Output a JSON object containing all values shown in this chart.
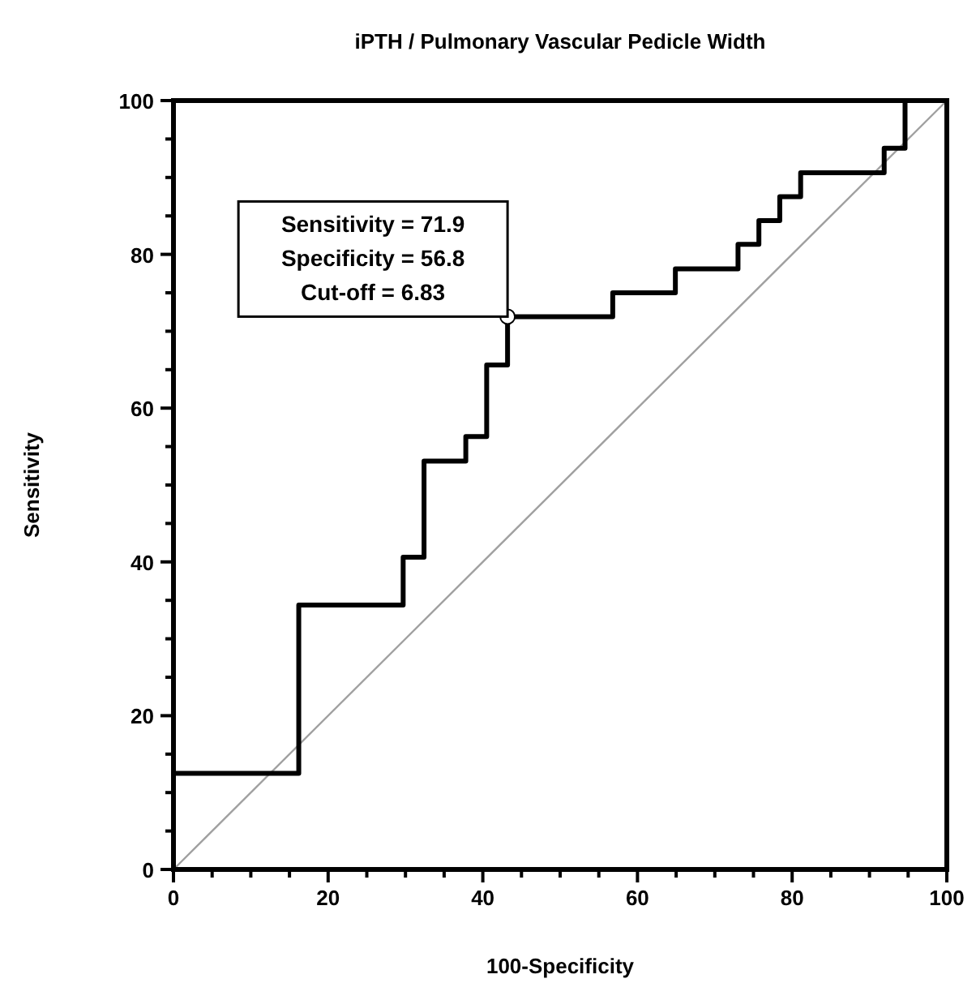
{
  "chart_data": {
    "type": "line",
    "title": "iPTH / Pulmonary Vascular Pedicle Width",
    "xlabel": "100-Specificity",
    "ylabel": "Sensitivity",
    "xlim": [
      0,
      100
    ],
    "ylim": [
      0,
      100
    ],
    "xticks": [
      0,
      {
        "value": 5,
        "label": null
      },
      {
        "value": 10,
        "label": null
      },
      {
        "value": 15,
        "label": null
      },
      20,
      {
        "value": 25,
        "label": null
      },
      {
        "value": 30,
        "label": null
      },
      {
        "value": 35,
        "label": null
      },
      40,
      {
        "value": 45,
        "label": null
      },
      {
        "value": 50,
        "label": null
      },
      {
        "value": 55,
        "label": null
      },
      60,
      {
        "value": 65,
        "label": null
      },
      {
        "value": 70,
        "label": null
      },
      {
        "value": 75,
        "label": null
      },
      80,
      {
        "value": 85,
        "label": null
      },
      {
        "value": 90,
        "label": null
      },
      {
        "value": 95,
        "label": null
      },
      100
    ],
    "yticks": [
      0,
      {
        "value": 5,
        "label": null
      },
      {
        "value": 10,
        "label": null
      },
      {
        "value": 15,
        "label": null
      },
      20,
      {
        "value": 25,
        "label": null
      },
      {
        "value": 30,
        "label": null
      },
      {
        "value": 35,
        "label": null
      },
      40,
      {
        "value": 45,
        "label": null
      },
      {
        "value": 50,
        "label": null
      },
      {
        "value": 55,
        "label": null
      },
      60,
      {
        "value": 65,
        "label": null
      },
      {
        "value": 70,
        "label": null
      },
      {
        "value": 75,
        "label": null
      },
      80,
      {
        "value": 85,
        "label": null
      },
      {
        "value": 90,
        "label": null
      },
      {
        "value": 95,
        "label": null
      },
      100
    ],
    "grid": false,
    "series": [
      {
        "color": "#000000",
        "marker": "none",
        "line_style": "solid",
        "x": [
          0,
          0,
          16.2,
          16.2,
          29.7,
          29.7,
          32.4,
          32.4,
          37.8,
          37.8,
          40.5,
          40.5,
          43.2,
          43.2,
          56.8,
          56.8,
          64.9,
          64.9,
          73,
          73,
          75.7,
          75.7,
          78.4,
          78.4,
          81.1,
          81.1,
          91.9,
          91.9,
          94.6,
          94.6,
          100
        ],
        "values": [
          0,
          12.5,
          12.5,
          34.4,
          34.4,
          40.6,
          40.6,
          53.1,
          53.1,
          56.3,
          56.3,
          65.6,
          65.6,
          71.9,
          71.9,
          75,
          75,
          78.1,
          78.1,
          81.3,
          81.3,
          84.4,
          84.4,
          87.5,
          87.5,
          90.6,
          90.6,
          93.8,
          93.8,
          100,
          100
        ]
      },
      {
        "color": "#a0a0a0",
        "marker": "none",
        "line_style": "solid",
        "x": [
          0,
          100
        ],
        "values": [
          0,
          100
        ]
      },
      {
        "type": "scatter",
        "color": "#000000",
        "marker": "circle",
        "x": [
          43.2
        ],
        "values": [
          71.9
        ]
      }
    ],
    "annotations": [
      {
        "text": "Sensitivity = 71.9\nSpecificity = 56.8\nCut-off = 6.83",
        "x": 43.2,
        "y": 71.9
      }
    ]
  }
}
